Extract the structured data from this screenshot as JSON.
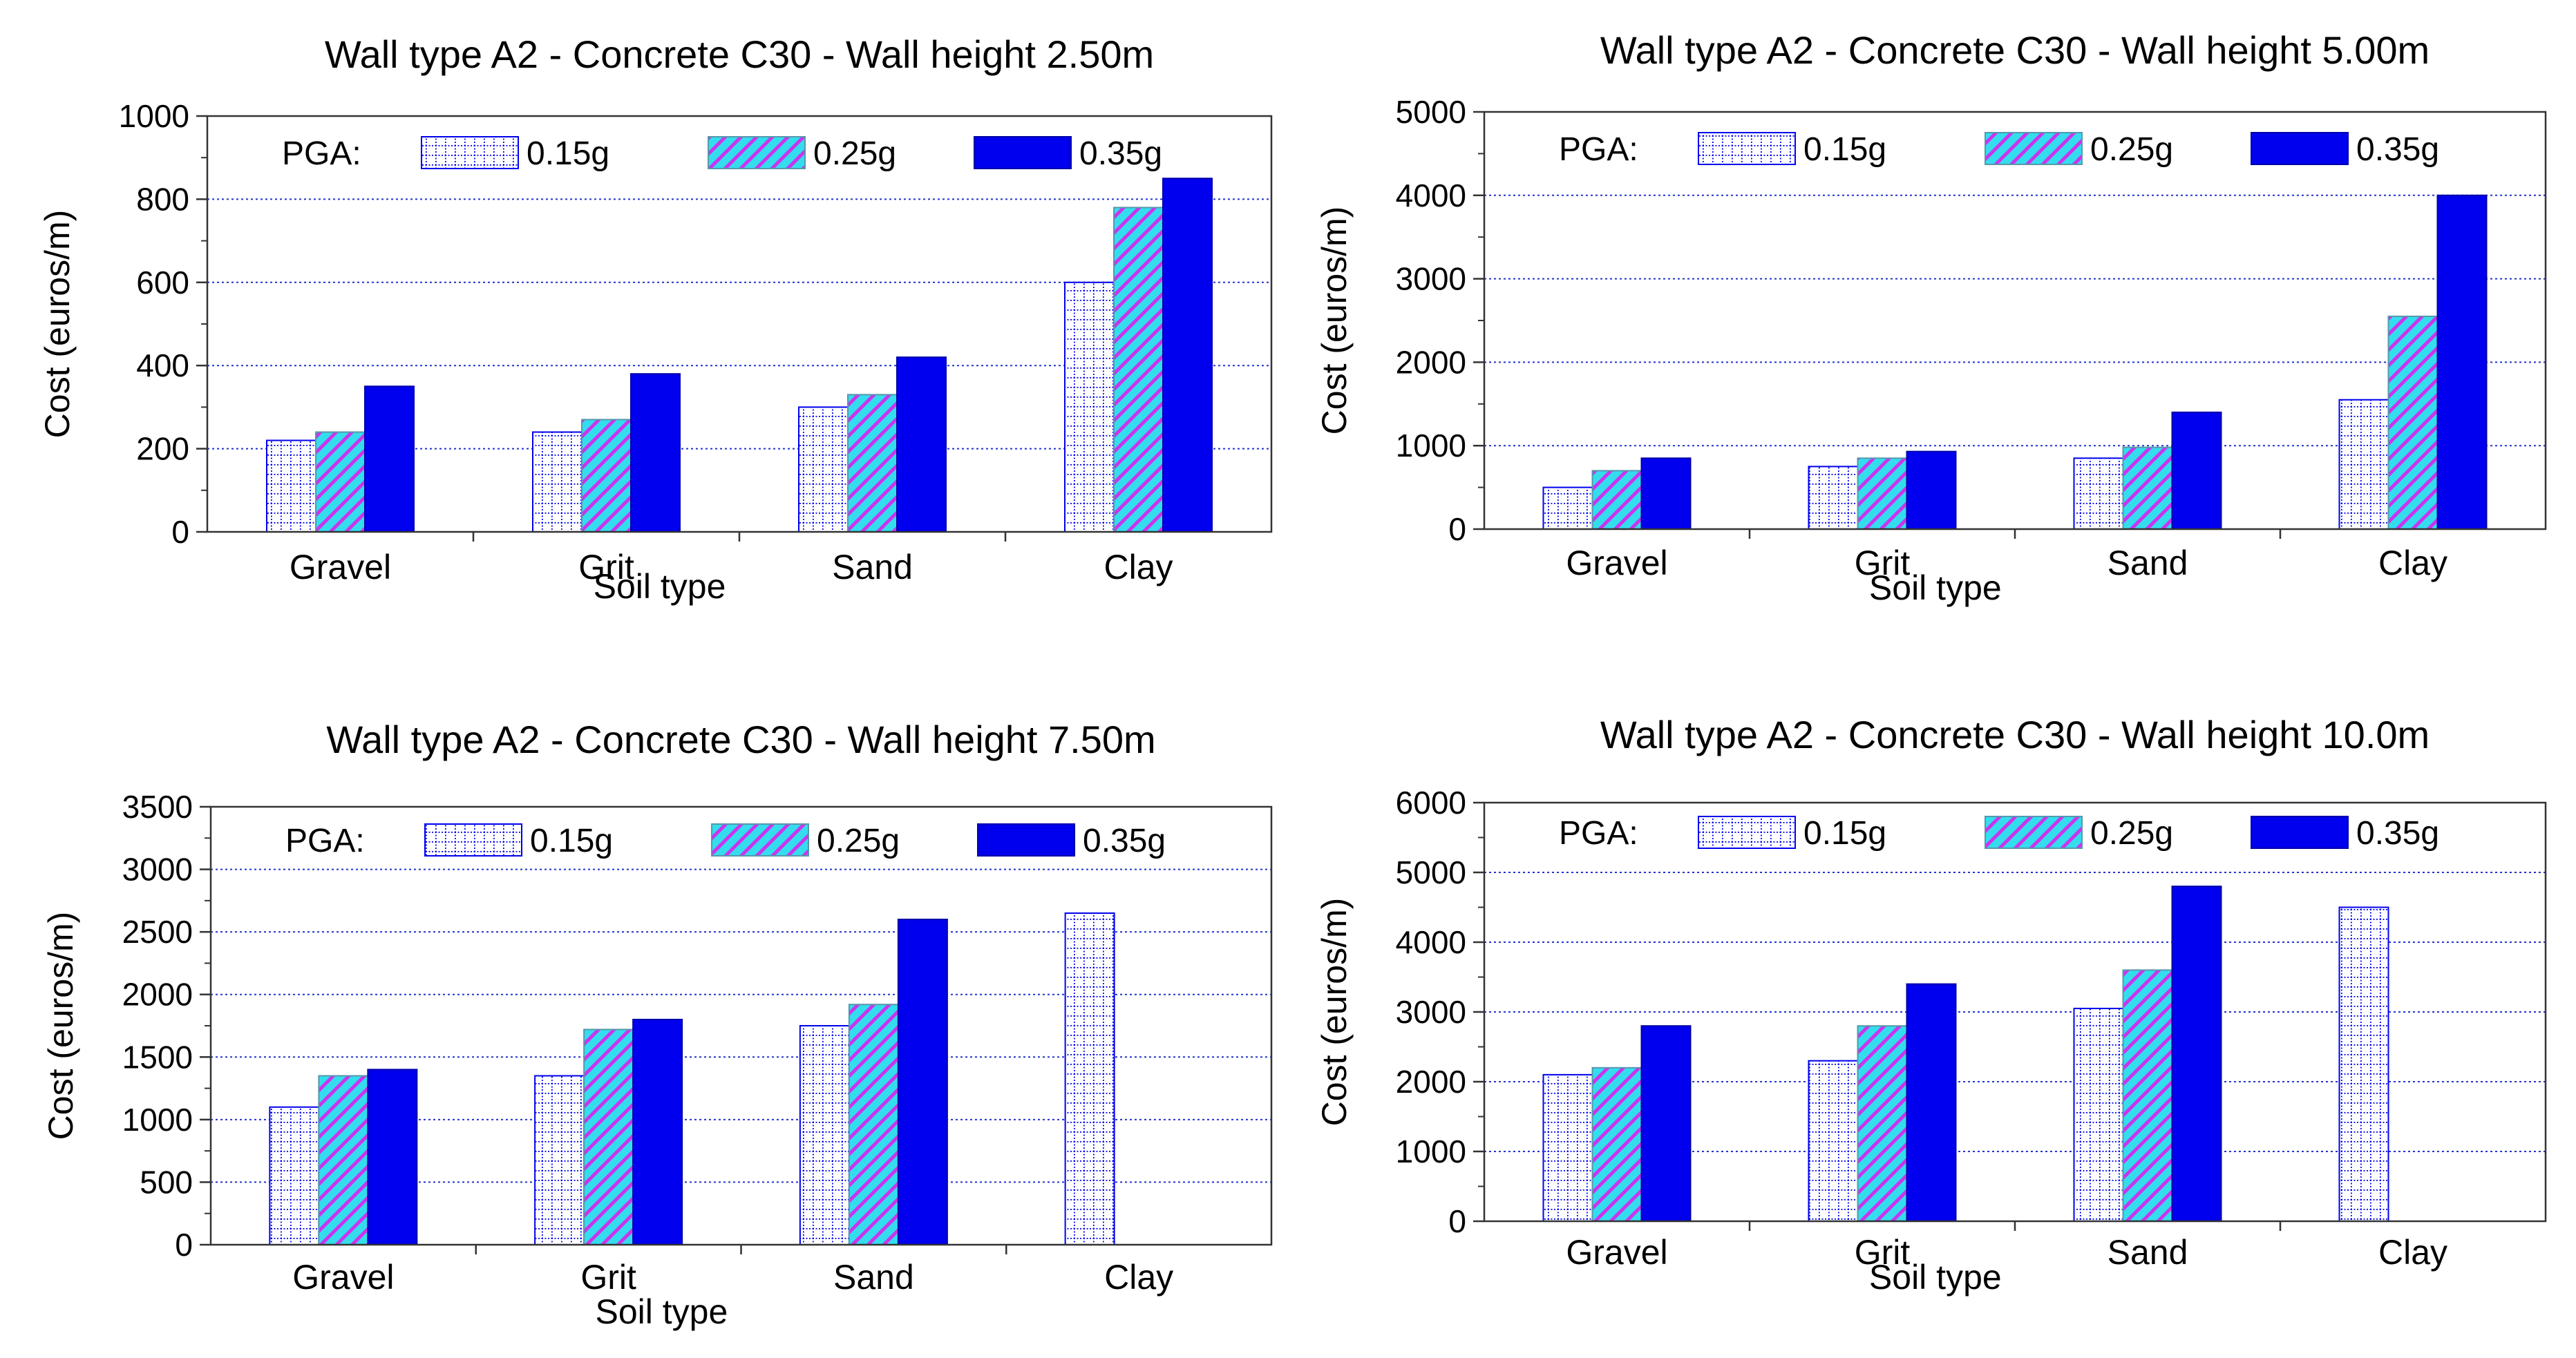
{
  "colors": {
    "pga_015": "#0000ee",
    "pga_025_base": "#33ddee",
    "pga_025_stripe": "#cc33ee",
    "pga_035": "#0000ee",
    "gridline": "#2233cc",
    "axis": "#333333"
  },
  "chart_data": [
    {
      "type": "bar",
      "title": "Wall type A2 - Concrete C30 - Wall height 2.50m",
      "xlabel": "Soil type",
      "ylabel": "Cost (euros/m)",
      "ylim": [
        0,
        1000
      ],
      "yticks": [
        0,
        200,
        400,
        600,
        800,
        1000
      ],
      "grid": true,
      "categories": [
        "Gravel",
        "Grit",
        "Sand",
        "Clay"
      ],
      "legend_title": "PGA:",
      "legend_position": "top",
      "series": [
        {
          "name": "0.15g",
          "values": [
            220,
            240,
            300,
            600
          ]
        },
        {
          "name": "0.25g",
          "values": [
            240,
            270,
            330,
            780
          ]
        },
        {
          "name": "0.35g",
          "values": [
            350,
            380,
            420,
            850
          ]
        }
      ]
    },
    {
      "type": "bar",
      "title": "Wall type A2 - Concrete C30 - Wall height 5.00m",
      "xlabel": "Soil type",
      "ylabel": "Cost (euros/m)",
      "ylim": [
        0,
        5000
      ],
      "yticks": [
        0,
        1000,
        2000,
        3000,
        4000,
        5000
      ],
      "grid": true,
      "categories": [
        "Gravel",
        "Grit",
        "Sand",
        "Clay"
      ],
      "legend_title": "PGA:",
      "legend_position": "top",
      "series": [
        {
          "name": "0.15g",
          "values": [
            500,
            750,
            850,
            1550
          ]
        },
        {
          "name": "0.25g",
          "values": [
            700,
            850,
            980,
            2550
          ]
        },
        {
          "name": "0.35g",
          "values": [
            850,
            930,
            1400,
            4000
          ]
        }
      ]
    },
    {
      "type": "bar",
      "title": "Wall type A2 - Concrete C30 - Wall height 7.50m",
      "xlabel": "Soil type",
      "ylabel": "Cost (euros/m)",
      "ylim": [
        0,
        3500
      ],
      "yticks": [
        0,
        500,
        1000,
        1500,
        2000,
        2500,
        3000,
        3500
      ],
      "grid": true,
      "categories": [
        "Gravel",
        "Grit",
        "Sand",
        "Clay"
      ],
      "legend_title": "PGA:",
      "legend_position": "top",
      "series": [
        {
          "name": "0.15g",
          "values": [
            1100,
            1350,
            1750,
            2650
          ]
        },
        {
          "name": "0.25g",
          "values": [
            1350,
            1720,
            1920,
            null
          ]
        },
        {
          "name": "0.35g",
          "values": [
            1400,
            1800,
            2600,
            null
          ]
        }
      ]
    },
    {
      "type": "bar",
      "title": "Wall type A2 - Concrete C30 - Wall height 10.0m",
      "xlabel": "Soil type",
      "ylabel": "Cost (euros/m)",
      "ylim": [
        0,
        6000
      ],
      "yticks": [
        0,
        1000,
        2000,
        3000,
        4000,
        5000,
        6000
      ],
      "grid": true,
      "categories": [
        "Gravel",
        "Grit",
        "Sand",
        "Clay"
      ],
      "legend_title": "PGA:",
      "legend_position": "top",
      "series": [
        {
          "name": "0.15g",
          "values": [
            2100,
            2300,
            3050,
            4500
          ]
        },
        {
          "name": "0.25g",
          "values": [
            2200,
            2800,
            3600,
            null
          ]
        },
        {
          "name": "0.35g",
          "values": [
            2800,
            3400,
            4800,
            null
          ]
        }
      ]
    }
  ]
}
